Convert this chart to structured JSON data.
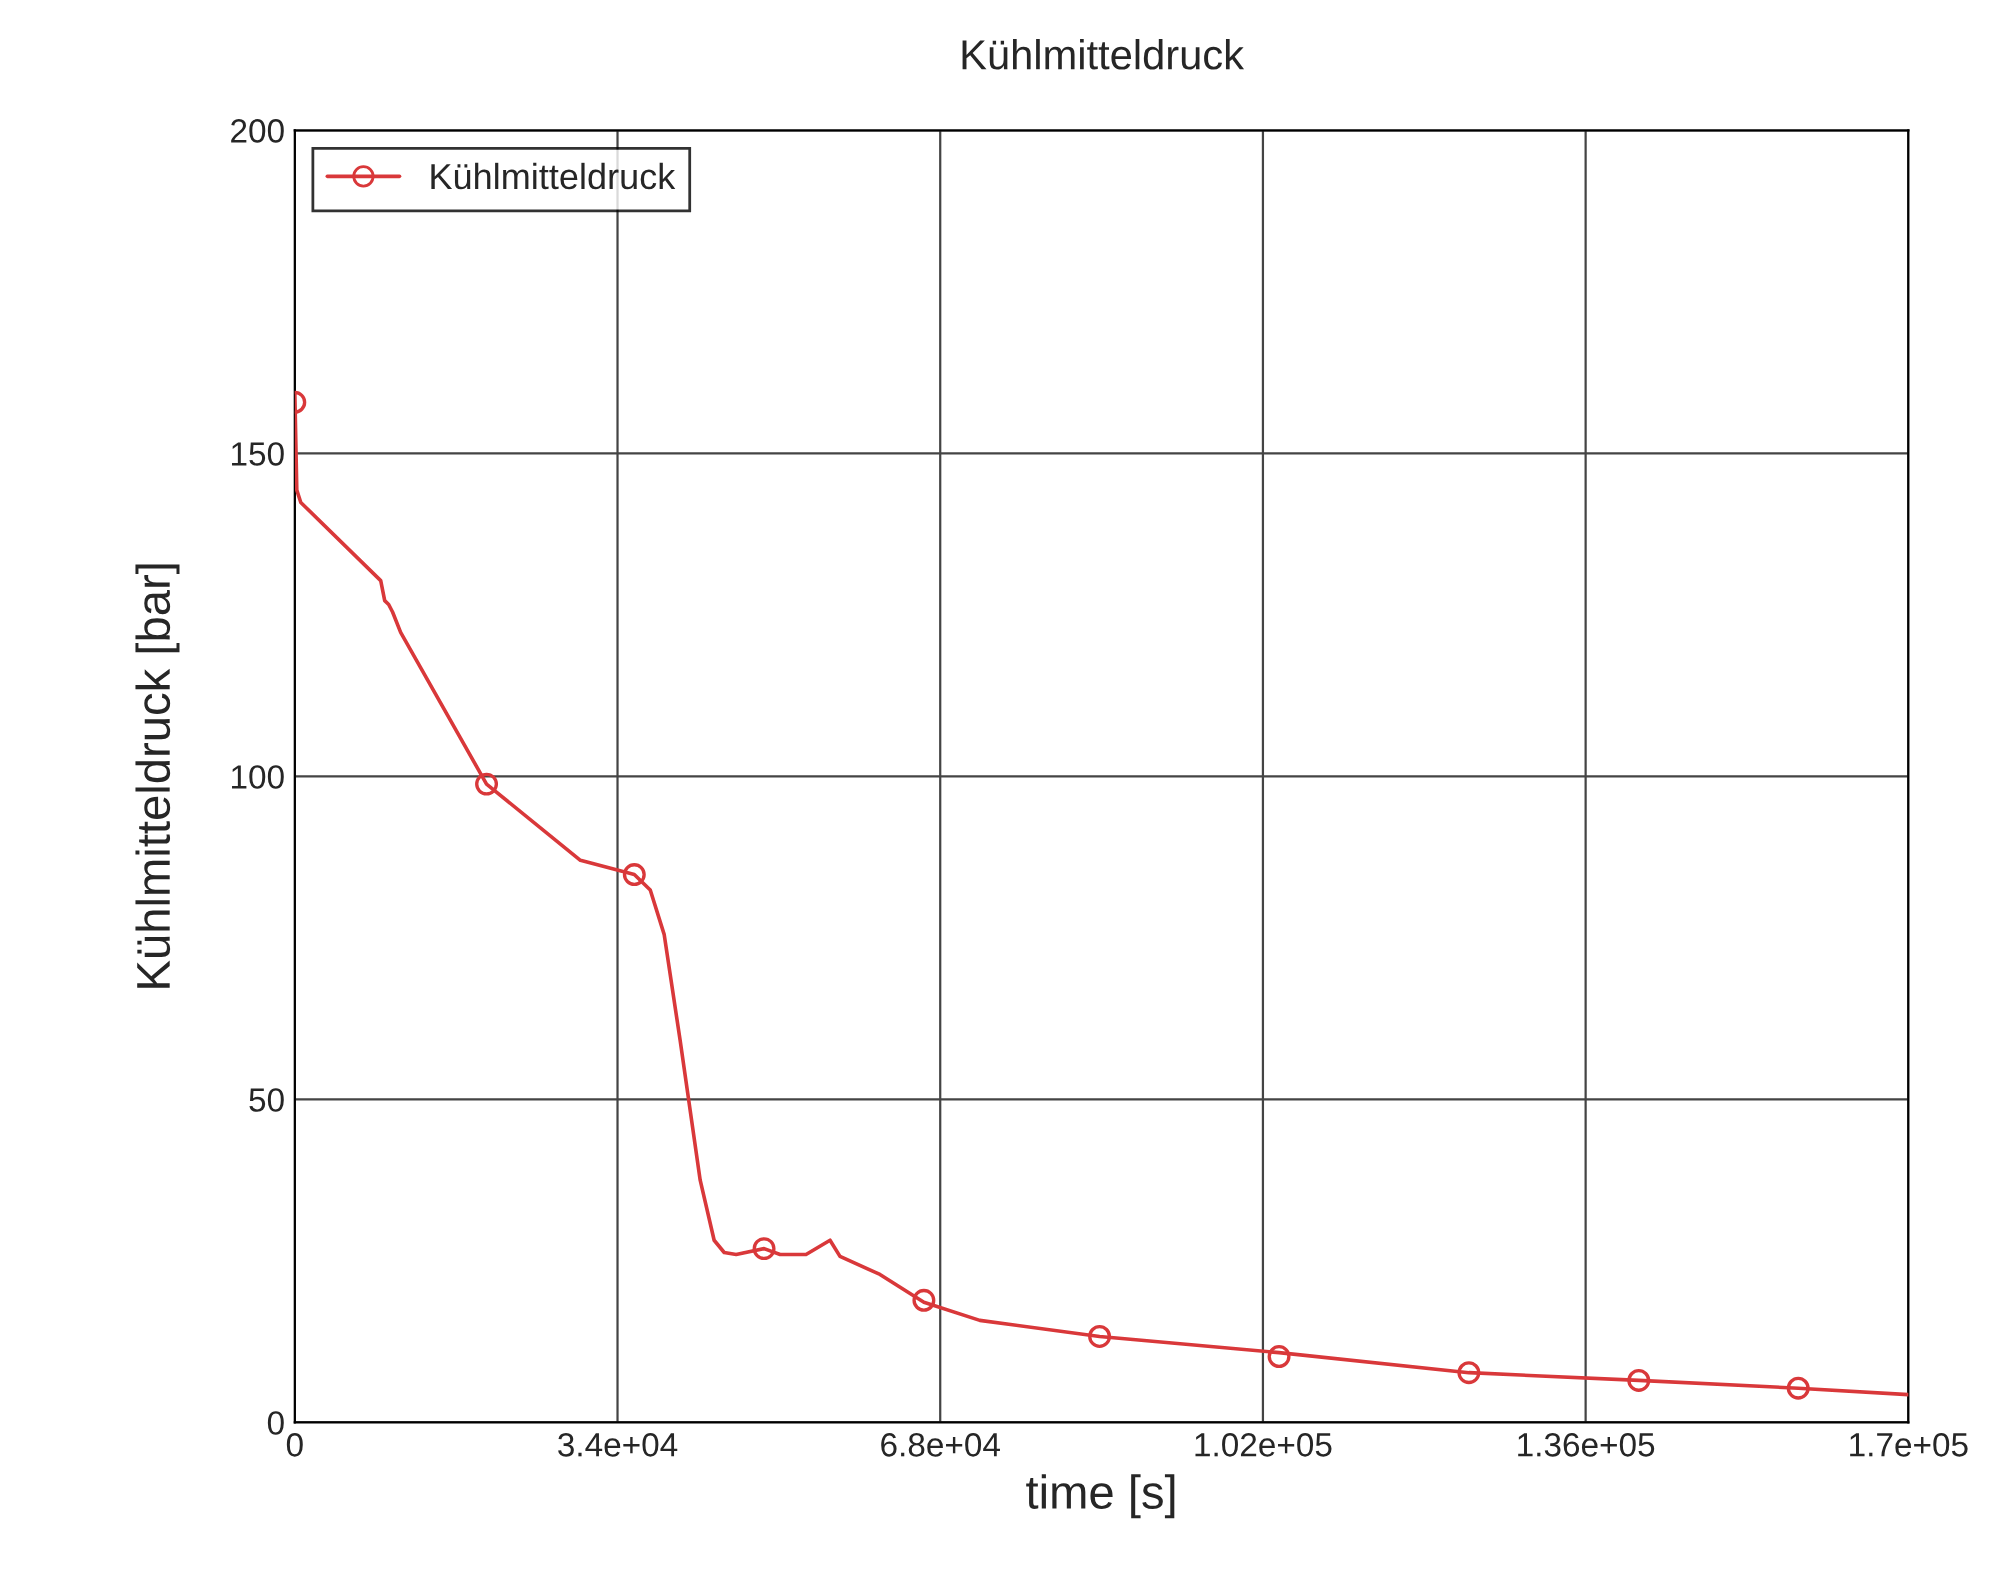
{
  "chart_data": {
    "type": "line",
    "title": "Kühlmitteldruck",
    "xlabel": "time [s]",
    "ylabel": "Kühlmitteldruck [bar]",
    "xlim": [
      0,
      170000
    ],
    "ylim": [
      0,
      200
    ],
    "xticks": [
      {
        "value": 0,
        "label": "0"
      },
      {
        "value": 34000,
        "label": "3.4e+04"
      },
      {
        "value": 68000,
        "label": "6.8e+04"
      },
      {
        "value": 102000,
        "label": "1.02e+05"
      },
      {
        "value": 136000,
        "label": "1.36e+05"
      },
      {
        "value": 170000,
        "label": "1.7e+05"
      }
    ],
    "yticks": [
      0,
      50,
      100,
      150,
      200
    ],
    "grid": true,
    "legend": "top left",
    "series": [
      {
        "name": "Kühlmitteldruck",
        "color": "#d9383a",
        "marker": "none",
        "x": [
          0,
          210,
          630,
          9050,
          9470,
          9890,
          10310,
          11150,
          20200,
          30090,
          35770,
          37450,
          38920,
          40600,
          42710,
          44180,
          45240,
          46500,
          49440,
          51130,
          53860,
          56390,
          57440,
          61650,
          66280,
          72170,
          84790,
          103700,
          123700,
          141600,
          158400,
          170000
        ],
        "values": [
          159.4,
          144.3,
          142.4,
          130.3,
          127.2,
          126.6,
          125.4,
          122.3,
          98.8,
          87,
          84.8,
          82.4,
          75.5,
          59.1,
          37.5,
          28.2,
          26.3,
          26,
          26.9,
          26,
          26,
          28.2,
          25.7,
          22.9,
          18.6,
          15.8,
          13.3,
          10.8,
          7.7,
          6.5,
          5.3,
          4.3
        ]
      },
      {
        "type": "scatter",
        "color": "#d9383a",
        "marker": "circle",
        "x": [
          0,
          20200,
          35770,
          49440,
          66280,
          84790,
          103700,
          123700,
          141600,
          158400
        ],
        "values": [
          157.9,
          98.8,
          84.8,
          26.9,
          18.9,
          13.3,
          10.2,
          7.7,
          6.5,
          5.3
        ]
      }
    ]
  }
}
